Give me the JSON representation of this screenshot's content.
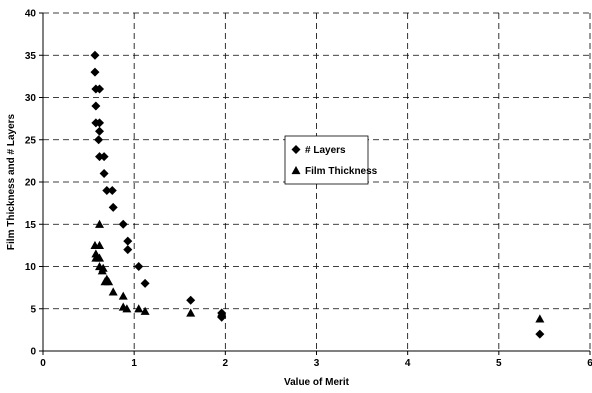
{
  "chart_data": {
    "type": "scatter",
    "title": "",
    "xlabel": "Value of Merit",
    "ylabel": "Film Thickness and # Layers",
    "xlim": [
      0,
      6
    ],
    "ylim": [
      0,
      40
    ],
    "xticks": [
      0,
      1,
      2,
      3,
      4,
      5,
      6
    ],
    "yticks": [
      0,
      5,
      10,
      15,
      20,
      25,
      30,
      35,
      40
    ],
    "grid": true,
    "legend_position": "center-right",
    "series": [
      {
        "name": "# Layers",
        "marker": "diamond",
        "color": "#000000",
        "points": [
          [
            0.57,
            35
          ],
          [
            0.57,
            33
          ],
          [
            0.58,
            31
          ],
          [
            0.62,
            31
          ],
          [
            0.58,
            29
          ],
          [
            0.58,
            27
          ],
          [
            0.62,
            27
          ],
          [
            0.62,
            26
          ],
          [
            0.61,
            25
          ],
          [
            0.62,
            23
          ],
          [
            0.67,
            23
          ],
          [
            0.67,
            21
          ],
          [
            0.7,
            19
          ],
          [
            0.76,
            19
          ],
          [
            0.77,
            17
          ],
          [
            0.88,
            15
          ],
          [
            0.93,
            13
          ],
          [
            0.93,
            12
          ],
          [
            1.05,
            10
          ],
          [
            1.12,
            8
          ],
          [
            1.62,
            6
          ],
          [
            1.96,
            4.5
          ],
          [
            1.96,
            4
          ],
          [
            5.45,
            2
          ]
        ]
      },
      {
        "name": "Film Thickness",
        "marker": "triangle",
        "color": "#000000",
        "points": [
          [
            0.62,
            15
          ],
          [
            0.57,
            12.5
          ],
          [
            0.62,
            12.5
          ],
          [
            0.58,
            11.5
          ],
          [
            0.58,
            11
          ],
          [
            0.62,
            11
          ],
          [
            0.62,
            10
          ],
          [
            0.66,
            9.8
          ],
          [
            0.65,
            9.5
          ],
          [
            0.7,
            8.5
          ],
          [
            0.68,
            8.2
          ],
          [
            0.72,
            8.2
          ],
          [
            0.77,
            7
          ],
          [
            0.88,
            6.5
          ],
          [
            0.88,
            5.2
          ],
          [
            0.92,
            5
          ],
          [
            1.05,
            5
          ],
          [
            1.12,
            4.7
          ],
          [
            1.62,
            4.5
          ],
          [
            1.96,
            4.5
          ],
          [
            5.45,
            3.8
          ]
        ]
      }
    ]
  }
}
